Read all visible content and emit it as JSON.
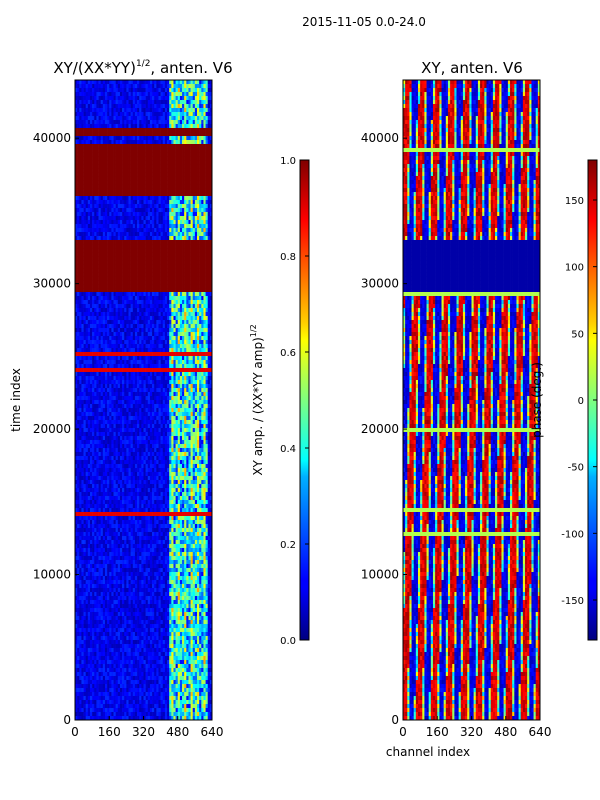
{
  "figure": {
    "suptitle": "2015-11-05 0.0-24.0"
  },
  "chart_data": [
    {
      "type": "heatmap",
      "title_main": "XY/(XX*YY)",
      "title_exp": "1/2",
      "title_tail": ", anten. V6",
      "xlabel": "",
      "ylabel": "time index",
      "xlim": [
        0,
        640
      ],
      "ylim": [
        0,
        44000
      ],
      "xticks": [
        0,
        160,
        320,
        480,
        640
      ],
      "yticks": [
        0,
        10000,
        20000,
        30000,
        40000
      ],
      "colorbar": {
        "label_main": "XY amp. / (XX*YY amp)",
        "label_exp": "1/2",
        "min": 0.0,
        "max": 1.0,
        "ticks": [
          "0.0",
          "0.2",
          "0.4",
          "0.6",
          "0.8",
          "1.0"
        ]
      },
      "saturated_bands": [
        [
          29500,
          33000
        ],
        [
          36000,
          39500
        ],
        [
          40200,
          40700
        ]
      ],
      "notes": "low amplitude background; bright structure in channels ~440-620"
    },
    {
      "type": "heatmap",
      "title_main": "XY, anten. V6",
      "xlabel": "channel index",
      "ylabel": "",
      "xlim": [
        0,
        640
      ],
      "ylim": [
        0,
        44000
      ],
      "xticks": [
        0,
        160,
        320,
        480,
        640
      ],
      "yticks": [
        0,
        10000,
        20000,
        30000,
        40000
      ],
      "colorbar": {
        "label_main": "phase (deg.)",
        "min": -180,
        "max": 180,
        "ticks": [
          "-150",
          "-100",
          "-50",
          "0",
          "50",
          "100",
          "150"
        ]
      },
      "flat_band": [
        29500,
        33000
      ],
      "notes": "phase in degrees; vertical striping across channels"
    }
  ]
}
